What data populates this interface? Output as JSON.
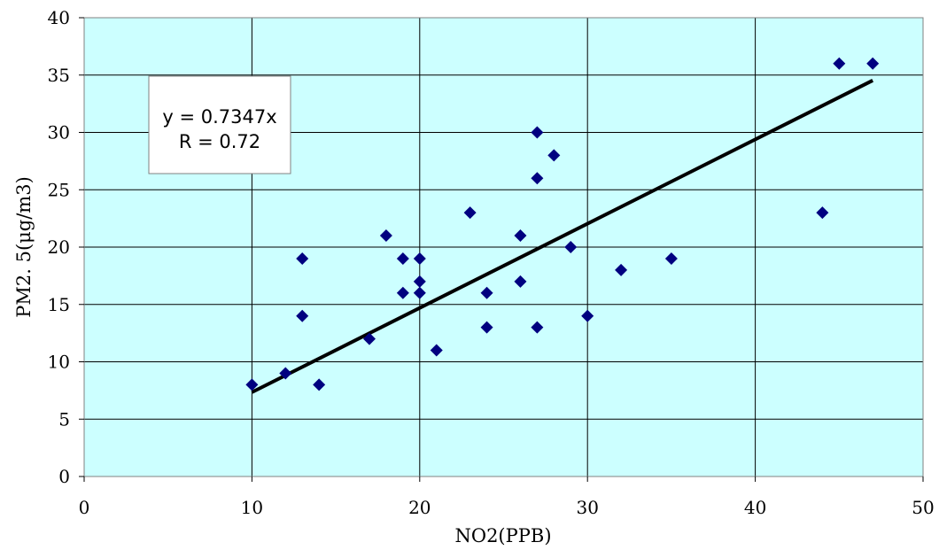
{
  "chart_data": {
    "type": "scatter",
    "xlabel": "NO2(PPB)",
    "ylabel": "PM2. 5(μg/m3)",
    "xlim": [
      0,
      50
    ],
    "ylim": [
      0,
      40
    ],
    "xticks": [
      0,
      10,
      20,
      30,
      40,
      50
    ],
    "yticks": [
      0,
      5,
      10,
      15,
      20,
      25,
      30,
      35,
      40
    ],
    "xtick_labels": [
      "0",
      "10",
      "20",
      "30",
      "40",
      "50"
    ],
    "ytick_labels": [
      "0",
      "5",
      "10",
      "15",
      "20",
      "25",
      "30",
      "35",
      "40"
    ],
    "grid": true,
    "plot_background": "#ccffff",
    "point_color": "#000080",
    "line_color": "#000000",
    "series": [
      {
        "points": [
          [
            10,
            8
          ],
          [
            12,
            9
          ],
          [
            13,
            19
          ],
          [
            13,
            14
          ],
          [
            14,
            8
          ],
          [
            17,
            12
          ],
          [
            18,
            21
          ],
          [
            19,
            19
          ],
          [
            19,
            16
          ],
          [
            20,
            19
          ],
          [
            20,
            17
          ],
          [
            20,
            16
          ],
          [
            21,
            11
          ],
          [
            23,
            23
          ],
          [
            24,
            16
          ],
          [
            24,
            13
          ],
          [
            26,
            21
          ],
          [
            26,
            17
          ],
          [
            27,
            30
          ],
          [
            27,
            26
          ],
          [
            27,
            13
          ],
          [
            28,
            28
          ],
          [
            29,
            20
          ],
          [
            30,
            14
          ],
          [
            32,
            18
          ],
          [
            35,
            19
          ],
          [
            44,
            23
          ],
          [
            45,
            36
          ],
          [
            47,
            36
          ]
        ]
      }
    ],
    "trendline": {
      "slope": 0.7347,
      "intercept": 0,
      "x_range": [
        10,
        47
      ]
    },
    "annotation": {
      "equation": "y = 0.7347x",
      "r": "R = 0.72"
    }
  }
}
